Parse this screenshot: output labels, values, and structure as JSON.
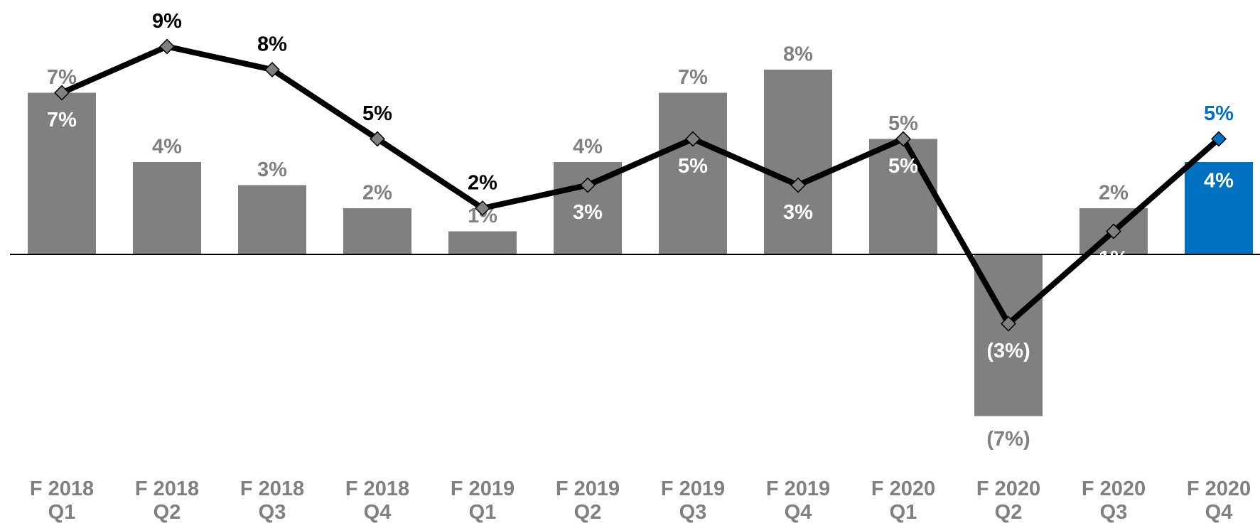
{
  "chart_data": {
    "type": "bar_line",
    "categories": [
      "F 2018 Q1",
      "F 2018 Q2",
      "F 2018 Q3",
      "F 2018 Q4",
      "F 2019 Q1",
      "F 2019 Q2",
      "F 2019 Q3",
      "F 2019 Q4",
      "F 2020 Q1",
      "F 2020 Q2",
      "F 2020 Q3",
      "F 2020 Q4"
    ],
    "ylim": [
      -8,
      10
    ],
    "series": [
      {
        "type": "bar",
        "colors": [
          "#808080",
          "#808080",
          "#808080",
          "#808080",
          "#808080",
          "#808080",
          "#808080",
          "#808080",
          "#808080",
          "#808080",
          "#808080",
          "#0070c0"
        ],
        "values": [
          7,
          4,
          3,
          2,
          1,
          4,
          7,
          8,
          5,
          -7,
          2,
          4
        ],
        "value_labels": [
          "7%",
          "4%",
          "3%",
          "2%",
          "1%",
          "4%",
          "7%",
          "8%",
          "5%",
          "(7%)",
          "2%",
          "4%"
        ]
      },
      {
        "type": "line",
        "color": "#000000",
        "marker_colors": [
          "#808080",
          "#808080",
          "#808080",
          "#808080",
          "#808080",
          "#808080",
          "#808080",
          "#808080",
          "#808080",
          "#808080",
          "#808080",
          "#0070c0"
        ],
        "values": [
          7,
          9,
          8,
          5,
          2,
          3,
          5,
          3,
          5,
          -3,
          1,
          5
        ],
        "value_labels": [
          "7%",
          "9%",
          "8%",
          "5%",
          "2%",
          "3%",
          "5%",
          "3%",
          "5%",
          "(3%)",
          "1%",
          "5%"
        ]
      }
    ]
  }
}
